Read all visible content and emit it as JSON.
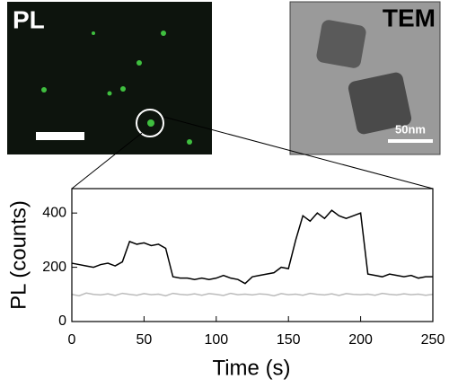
{
  "chart_data": {
    "type": "line",
    "xlabel": "Time (s)",
    "ylabel": "PL (counts)",
    "annotations": [
      "PL",
      "TEM",
      "50nm"
    ],
    "x": [
      0,
      5,
      10,
      15,
      20,
      25,
      30,
      35,
      40,
      45,
      50,
      55,
      60,
      65,
      70,
      75,
      80,
      85,
      90,
      95,
      100,
      105,
      110,
      115,
      120,
      125,
      130,
      135,
      140,
      145,
      150,
      155,
      160,
      165,
      170,
      175,
      180,
      185,
      190,
      195,
      200,
      205,
      210,
      215,
      220,
      225,
      230,
      235,
      240,
      245,
      250
    ],
    "series": [
      {
        "color": "#000000",
        "values": [
          215,
          210,
          205,
          200,
          210,
          215,
          205,
          220,
          295,
          285,
          290,
          280,
          285,
          270,
          165,
          160,
          160,
          155,
          160,
          155,
          160,
          170,
          160,
          155,
          140,
          165,
          170,
          175,
          180,
          200,
          195,
          300,
          390,
          370,
          400,
          380,
          410,
          390,
          380,
          390,
          400,
          175,
          170,
          165,
          175,
          170,
          165,
          170,
          160,
          165,
          165
        ]
      },
      {
        "color": "#bbbbbb",
        "values": [
          100,
          95,
          105,
          100,
          98,
          102,
          96,
          104,
          100,
          97,
          103,
          99,
          101,
          95,
          104,
          100,
          98,
          102,
          97,
          103,
          100,
          96,
          104,
          99,
          101,
          98,
          102,
          100,
          95,
          103,
          99,
          101,
          97,
          104,
          100,
          98,
          102,
          96,
          103,
          100,
          99,
          101,
          97,
          104,
          100,
          98,
          102,
          99,
          101,
          97,
          100
        ]
      }
    ],
    "xlim": [
      0,
      250
    ],
    "xticks": [
      0,
      50,
      100,
      150,
      200,
      250
    ],
    "ylim": [
      0,
      490
    ],
    "yticks": [
      0,
      200,
      400
    ]
  }
}
